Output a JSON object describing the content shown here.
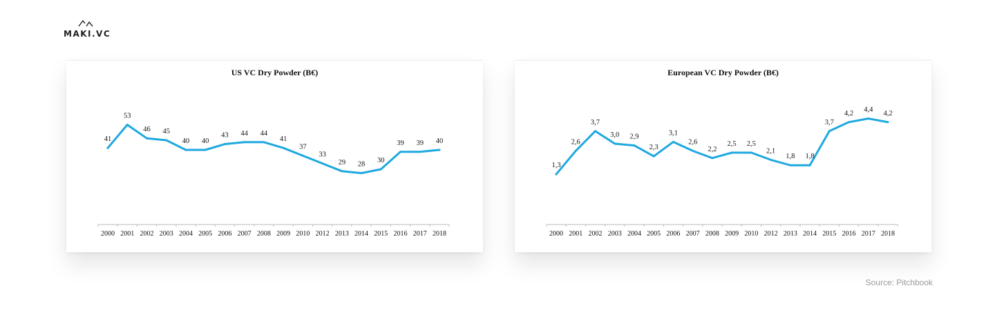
{
  "logo": {
    "text": "MAKI.VC",
    "icon": "maki-logo-icon"
  },
  "source": "Source: Pitchbook",
  "colors": {
    "line": "#1ea8e0",
    "axis": "#bbbbbb",
    "text": "#111111"
  },
  "chart_data": [
    {
      "type": "line",
      "title": "US VC Dry Powder (B€)",
      "xlabel": "",
      "ylabel": "",
      "grid": false,
      "x": [
        "2000",
        "2001",
        "2002",
        "2003",
        "2004",
        "2005",
        "2006",
        "2007",
        "2008",
        "2009",
        "2010",
        "2012",
        "2013",
        "2014",
        "2015",
        "2016",
        "2017",
        "2018"
      ],
      "values": [
        41,
        53,
        46,
        45,
        40,
        40,
        43,
        44,
        44,
        41,
        37,
        33,
        29,
        28,
        30,
        39,
        39,
        40
      ],
      "labels": [
        "41",
        "53",
        "46",
        "45",
        "40",
        "40",
        "43",
        "44",
        "44",
        "41",
        "37",
        "33",
        "29",
        "28",
        "30",
        "39",
        "39",
        "40"
      ],
      "ylim": [
        10,
        60
      ]
    },
    {
      "type": "line",
      "title": "European VC Dry Powder (B€)",
      "xlabel": "",
      "ylabel": "",
      "grid": false,
      "x": [
        "2000",
        "2001",
        "2002",
        "2003",
        "2004",
        "2005",
        "2006",
        "2007",
        "2008",
        "2009",
        "2010",
        "2012",
        "2013",
        "2014",
        "2015",
        "2016",
        "2017",
        "2018"
      ],
      "values": [
        1.3,
        2.6,
        3.7,
        3.0,
        2.9,
        2.3,
        3.1,
        2.6,
        2.2,
        2.5,
        2.5,
        2.1,
        1.8,
        1.8,
        3.7,
        4.2,
        4.4,
        4.2
      ],
      "labels": [
        "1,3",
        "2,6",
        "3,7",
        "3,0",
        "2,9",
        "2,3",
        "3,1",
        "2,6",
        "2,2",
        "2,5",
        "2,5",
        "2,1",
        "1,8",
        "1,8",
        "3,7",
        "4,2",
        "4,4",
        "4,2"
      ],
      "ylim": [
        0,
        5
      ]
    }
  ]
}
